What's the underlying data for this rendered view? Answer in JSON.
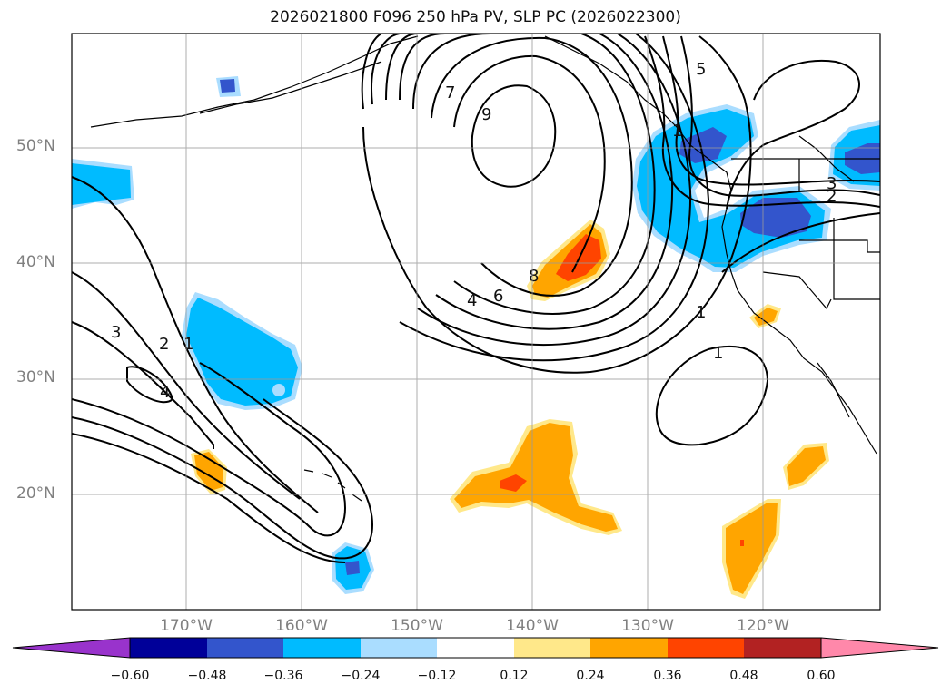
{
  "title": "2026021800 F096 250 hPa PV, SLP PC (2026022300)",
  "map": {
    "lat_labels": [
      "50°N",
      "40°N",
      "30°N",
      "20°N"
    ],
    "lon_labels": [
      "170°W",
      "160°W",
      "150°W",
      "140°W",
      "130°W",
      "120°W"
    ],
    "contour_labels": [
      "9",
      "7",
      "8",
      "6",
      "4",
      "5",
      "3",
      "2",
      "1",
      "1",
      "3",
      "2",
      "1",
      "4",
      "1"
    ]
  },
  "colorbar": {
    "colors": [
      "#9933cc",
      "#000099",
      "#3355cc",
      "#00bbff",
      "#aaddff",
      "#ffffff",
      "#ffe88a",
      "#ffa500",
      "#ff4400",
      "#b22222",
      "#ff88aa"
    ],
    "ticks": [
      "−0.60",
      "−0.48",
      "−0.36",
      "−0.24",
      "−0.12",
      "0.12",
      "0.24",
      "0.36",
      "0.48",
      "0.60"
    ]
  }
}
